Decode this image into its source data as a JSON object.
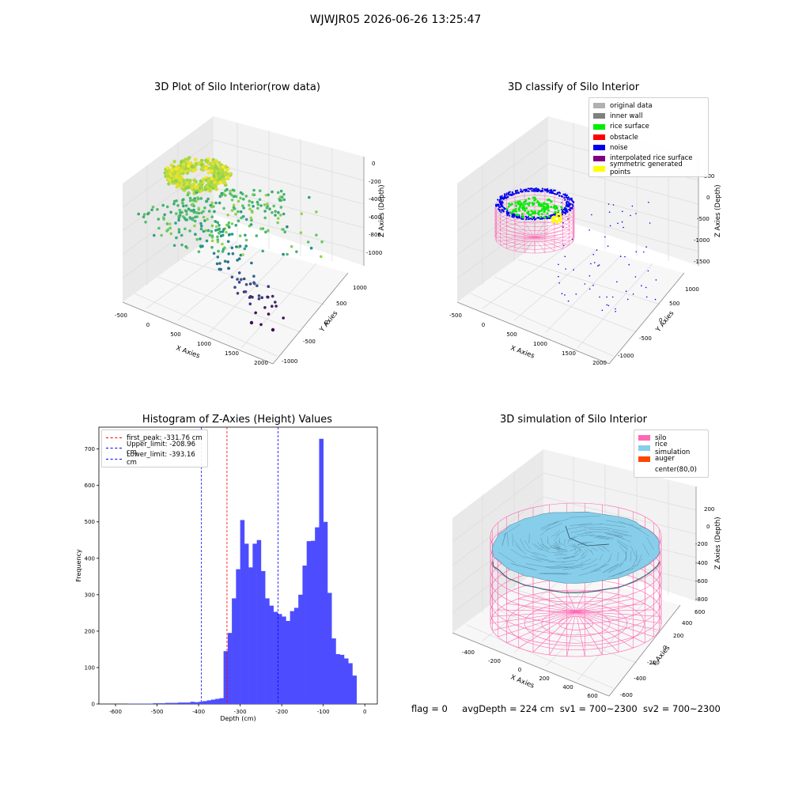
{
  "suptitle": "WJWJR05 2026-06-26 13:25:47",
  "footer": {
    "flag": "flag = 0",
    "avg": "avgDepth = 224 cm",
    "sv1": "sv1 = 700~2300",
    "sv2": "sv2 = 700~2300"
  },
  "chart_data": [
    {
      "type": "scatter",
      "title": "3D Plot of Silo Interior(row data)",
      "xlabel": "X Axies",
      "ylabel": "Y Axies",
      "zlabel": "Z Axies (Depth)",
      "xticks": [
        "-500",
        "0",
        "500",
        "1000",
        "1500",
        "2000"
      ],
      "yticks": [
        "-1000",
        "-500",
        "0",
        "500",
        "1000"
      ],
      "zticks": [
        "0",
        "-200",
        "-400",
        "-600",
        "-800",
        "-1000"
      ],
      "colormap": "viridis",
      "xlim": [
        -500,
        2000
      ],
      "ylim": [
        -1000,
        1000
      ],
      "zlim": [
        -1100,
        0
      ]
    },
    {
      "type": "scatter",
      "title": "3D classify of Silo Interior",
      "xlabel": "X Axies",
      "ylabel": "Y Axies",
      "zlabel": "Z Axies (Depth)",
      "xticks": [
        "-500",
        "0",
        "500",
        "1000",
        "1500",
        "2000"
      ],
      "yticks": [
        "-1000",
        "-500",
        "0",
        "500",
        "1000"
      ],
      "zticks": [
        "500",
        "0",
        "-500",
        "-1000",
        "-1500"
      ],
      "legend_position": "top-right",
      "legend": [
        {
          "label": "original data",
          "color": "#b0b0b0"
        },
        {
          "label": "inner wall",
          "color": "#808080"
        },
        {
          "label": "rice surface",
          "color": "#00ee00"
        },
        {
          "label": "obstacle",
          "color": "#ff0000"
        },
        {
          "label": "noise",
          "color": "#0000ee"
        },
        {
          "label": "interpolated rice surface",
          "color": "#800080"
        },
        {
          "label": "symmetric generated points",
          "color": "#ffff00"
        }
      ]
    },
    {
      "type": "bar",
      "title": "Histogram of Z-Axies (Height) Values",
      "xlabel": "Depth (cm)",
      "ylabel": "Frequency",
      "xlim": [
        -640,
        30
      ],
      "ylim": [
        0,
        760
      ],
      "xticks": [
        -600,
        -500,
        -400,
        -300,
        -200,
        -100,
        0
      ],
      "yticks": [
        0,
        100,
        200,
        300,
        400,
        500,
        600,
        700
      ],
      "bin_width": 10,
      "bin_start": -570,
      "bar_color": "#4d4dff",
      "values": [
        1,
        1,
        1,
        1,
        1,
        1,
        2,
        2,
        2,
        3,
        3,
        3,
        4,
        4,
        4,
        6,
        5,
        6,
        8,
        10,
        12,
        14,
        16,
        145,
        195,
        290,
        370,
        505,
        440,
        375,
        440,
        450,
        365,
        290,
        270,
        253,
        247,
        240,
        228,
        255,
        264,
        300,
        380,
        447,
        448,
        485,
        728,
        500,
        305,
        180,
        137,
        135,
        125,
        112,
        78
      ],
      "vlines": [
        {
          "label": "first_peak: -331.76 cm",
          "x": -331.76,
          "color": "#ff0000"
        },
        {
          "label": "Upper_limit: -208.96 cm",
          "x": -208.96,
          "color": "#0000ff"
        },
        {
          "label": "Lower_limit: -393.16 cm",
          "x": -393.16,
          "color": "#0000ff"
        }
      ],
      "legend_position": "top-left"
    },
    {
      "type": "area",
      "title": "3D simulation of Silo Interior",
      "xlabel": "X Axies",
      "ylabel": "Y Axies",
      "zlabel": "Z Axies (Depth)",
      "xticks": [
        "-400",
        "-200",
        "0",
        "200",
        "400",
        "600"
      ],
      "yticks": [
        "-600",
        "-400",
        "-200",
        "0",
        "200",
        "400",
        "600"
      ],
      "zticks": [
        "200",
        "0",
        "-200",
        "-400",
        "-600",
        "-800"
      ],
      "legend_position": "top-right",
      "legend": [
        {
          "label": "silo",
          "color": "#ff69b4"
        },
        {
          "label": "rice simulation",
          "color": "#87ceeb"
        },
        {
          "label": "auger",
          "color": "#ff4500"
        },
        {
          "label": "center(80,0)",
          "color": ""
        }
      ]
    }
  ]
}
